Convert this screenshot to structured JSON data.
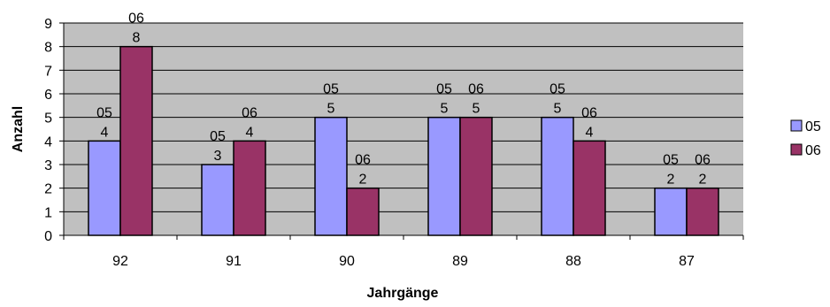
{
  "chart_data": {
    "type": "bar",
    "xlabel": "Jahrgänge",
    "ylabel": "Anzahl",
    "categories": [
      "92",
      "91",
      "90",
      "89",
      "88",
      "87"
    ],
    "ylim": [
      0,
      9
    ],
    "yticks": [
      "0",
      "1",
      "2",
      "3",
      "4",
      "5",
      "6",
      "7",
      "8",
      "9"
    ],
    "grid": true,
    "legend_position": "right",
    "series": [
      {
        "name": "05",
        "color": "#9999ff",
        "values": [
          4,
          3,
          5,
          5,
          5,
          2
        ],
        "label_top": [
          "05",
          "05",
          "05",
          "05",
          "05",
          "05"
        ],
        "label_bottom": [
          "4",
          "3",
          "5",
          "5",
          "5",
          "2"
        ]
      },
      {
        "name": "06",
        "color": "#993366",
        "values": [
          8,
          4,
          2,
          5,
          4,
          2
        ],
        "label_top": [
          "06",
          "06",
          "06",
          "06",
          "06",
          "06"
        ],
        "label_bottom": [
          "8",
          "4",
          "2",
          "5",
          "4",
          "2"
        ]
      }
    ],
    "plot_background": "#c0c0c0",
    "gridline_color": "#000000"
  }
}
